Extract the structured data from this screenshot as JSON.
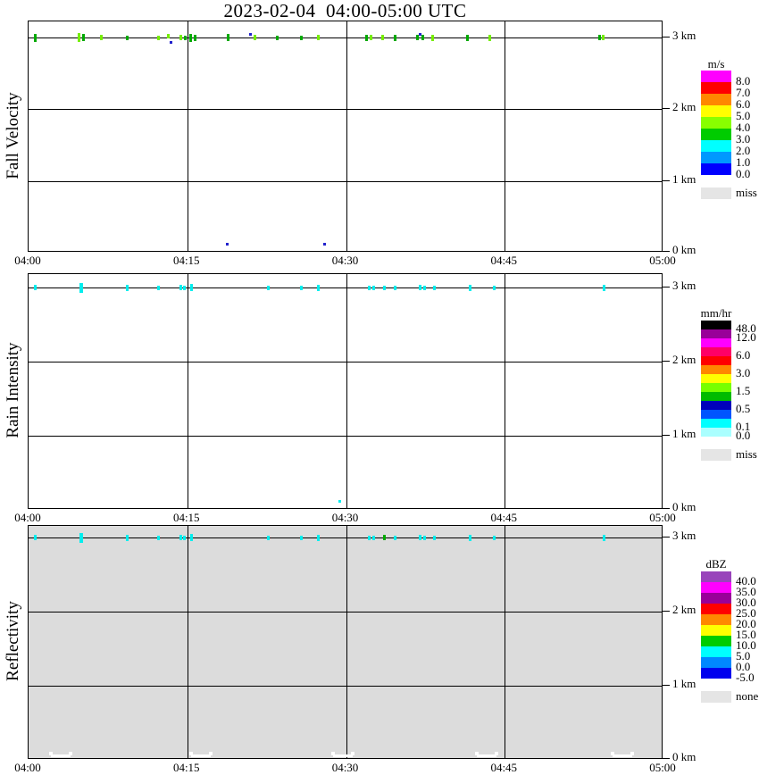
{
  "title": "2023-02-04  04:00-05:00 UTC",
  "x_axis": {
    "labels": [
      "04:00",
      "04:15",
      "04:30",
      "04:45",
      "05:00"
    ]
  },
  "y_axis": {
    "labels": [
      "3 km",
      "2 km",
      "1 km",
      "0 km"
    ]
  },
  "chart_data": [
    {
      "type": "heatmap",
      "title": "Fall Velocity",
      "units": "m/s",
      "x_range": [
        "04:00",
        "05:00"
      ],
      "y_range_km": [
        0,
        3.3
      ],
      "grid": true,
      "background": "#ffffff",
      "point_color": "#00aa00",
      "legend": {
        "title": "m/s",
        "position": "right",
        "cells": [
          {
            "color": "#ff00ff",
            "label": "8.0"
          },
          {
            "color": "#ff0000",
            "label": "7.0"
          },
          {
            "color": "#ff8800",
            "label": "6.0"
          },
          {
            "color": "#ffff00",
            "label": "5.0"
          },
          {
            "color": "#88ff00",
            "label": "4.0"
          },
          {
            "color": "#00cc00",
            "label": "3.0"
          },
          {
            "color": "#00ffff",
            "label": "2.0"
          },
          {
            "color": "#0099ff",
            "label": "1.0"
          },
          {
            "color": "#0000ff",
            "label": "0.0"
          }
        ],
        "extra": {
          "color": "#e5e5e5",
          "label": "miss"
        }
      },
      "points": [
        {
          "t": "04:01",
          "f": 0.011,
          "km": 3.05,
          "c": "#00aa00",
          "h": 9
        },
        {
          "t": "04:05",
          "f": 0.08,
          "km": 3.05,
          "c": "#77ee00",
          "h": 10
        },
        {
          "t": "04:05",
          "f": 0.086,
          "km": 3.05,
          "c": "#00aa00",
          "h": 8
        },
        {
          "t": "04:07",
          "f": 0.115,
          "km": 3.05,
          "c": "#77ee00",
          "h": 6
        },
        {
          "t": "04:09",
          "f": 0.156,
          "km": 3.05,
          "c": "#00aa00",
          "h": 5
        },
        {
          "t": "04:12",
          "f": 0.205,
          "km": 3.05,
          "c": "#77ee00",
          "h": 5
        },
        {
          "t": "04:13",
          "f": 0.22,
          "km": 3.08,
          "c": "#77ee00",
          "h": 5,
          "dy": -2
        },
        {
          "t": "04:13",
          "f": 0.225,
          "km": 2.98,
          "c": "#2222cc",
          "h": 3,
          "dy": 5
        },
        {
          "t": "04:14",
          "f": 0.24,
          "km": 3.05,
          "c": "#77ee00",
          "h": 6
        },
        {
          "t": "04:15",
          "f": 0.247,
          "km": 3.05,
          "c": "#00aa00",
          "h": 5
        },
        {
          "t": "04:15",
          "f": 0.255,
          "km": 3.05,
          "c": "#00aa00",
          "h": 9
        },
        {
          "t": "04:16",
          "f": 0.262,
          "km": 3.05,
          "c": "#00aa00",
          "h": 7
        },
        {
          "t": "04:19",
          "f": 0.315,
          "km": 3.05,
          "c": "#00aa00",
          "h": 8
        },
        {
          "t": "04:21",
          "f": 0.35,
          "km": 3.1,
          "c": "#2222cc",
          "h": 3,
          "dy": -4
        },
        {
          "t": "04:21",
          "f": 0.357,
          "km": 3.05,
          "c": "#77ee00",
          "h": 6
        },
        {
          "t": "04:24",
          "f": 0.392,
          "km": 3.05,
          "c": "#00aa00",
          "h": 5
        },
        {
          "t": "04:26",
          "f": 0.43,
          "km": 3.05,
          "c": "#00aa00",
          "h": 5
        },
        {
          "t": "04:27",
          "f": 0.456,
          "km": 3.05,
          "c": "#77ee00",
          "h": 6
        },
        {
          "t": "04:32",
          "f": 0.533,
          "km": 3.05,
          "c": "#00aa00",
          "h": 7
        },
        {
          "t": "04:32",
          "f": 0.54,
          "km": 3.05,
          "c": "#77ee00",
          "h": 6
        },
        {
          "t": "04:33",
          "f": 0.557,
          "km": 3.05,
          "c": "#77ee00",
          "h": 6
        },
        {
          "t": "04:35",
          "f": 0.578,
          "km": 3.05,
          "c": "#00aa00",
          "h": 7
        },
        {
          "t": "04:37",
          "f": 0.613,
          "km": 3.05,
          "c": "#00aa00",
          "h": 6
        },
        {
          "t": "04:37",
          "f": 0.617,
          "km": 3.1,
          "c": "#2222cc",
          "h": 3,
          "dy": -4
        },
        {
          "t": "04:37",
          "f": 0.621,
          "km": 3.05,
          "c": "#00aa00",
          "h": 6
        },
        {
          "t": "04:38",
          "f": 0.637,
          "km": 3.05,
          "c": "#77ee00",
          "h": 7
        },
        {
          "t": "04:41",
          "f": 0.691,
          "km": 3.05,
          "c": "#00aa00",
          "h": 7
        },
        {
          "t": "04:44",
          "f": 0.727,
          "km": 3.05,
          "c": "#77ee00",
          "h": 7
        },
        {
          "t": "04:54",
          "f": 0.899,
          "km": 3.05,
          "c": "#00aa00",
          "h": 6
        },
        {
          "t": "04:54",
          "f": 0.905,
          "km": 3.05,
          "c": "#77ee00",
          "h": 6
        }
      ],
      "bottom_marks": [
        {
          "t": "04:19",
          "f": 0.312,
          "km": 0.05,
          "c": "#2222cc",
          "shape": "dot"
        },
        {
          "t": "04:28",
          "f": 0.466,
          "km": 0.05,
          "c": "#2222cc",
          "shape": "dot"
        }
      ]
    },
    {
      "type": "heatmap",
      "title": "Rain Intensity",
      "units": "mm/hr",
      "x_range": [
        "04:00",
        "05:00"
      ],
      "y_range_km": [
        0,
        3.3
      ],
      "grid": true,
      "background": "#ffffff",
      "point_color": "#00eeee",
      "legend": {
        "title": "mm/hr",
        "position": "right",
        "cells": [
          {
            "color": "#000000",
            "label": "48.0"
          },
          {
            "color": "#990099",
            "label": "12.0"
          },
          {
            "color": "#ff00ff",
            "label": ""
          },
          {
            "color": "#ff0066",
            "label": "6.0"
          },
          {
            "color": "#ff0000",
            "label": ""
          },
          {
            "color": "#ff8800",
            "label": "3.0"
          },
          {
            "color": "#ffff00",
            "label": ""
          },
          {
            "color": "#77ff00",
            "label": "1.5"
          },
          {
            "color": "#00bb00",
            "label": ""
          },
          {
            "color": "#0000bb",
            "label": "0.5"
          },
          {
            "color": "#0055ff",
            "label": ""
          },
          {
            "color": "#00ffff",
            "label": "0.1"
          },
          {
            "color": "#aaffff",
            "label": "0.0"
          }
        ],
        "extra": {
          "color": "#e5e5e5",
          "label": "miss"
        }
      },
      "points": [
        {
          "t": "04:01",
          "f": 0.011,
          "km": 3.05,
          "h": 6
        },
        {
          "t": "04:05",
          "f": 0.083,
          "km": 3.05,
          "h": 11,
          "w": 4
        },
        {
          "t": "04:09",
          "f": 0.156,
          "km": 3.05,
          "h": 7
        },
        {
          "t": "04:12",
          "f": 0.205,
          "km": 3.05,
          "h": 5
        },
        {
          "t": "04:14",
          "f": 0.24,
          "km": 3.05,
          "h": 6
        },
        {
          "t": "04:15",
          "f": 0.246,
          "km": 3.05,
          "h": 5
        },
        {
          "t": "04:15",
          "f": 0.257,
          "km": 3.05,
          "h": 8
        },
        {
          "t": "04:23",
          "f": 0.378,
          "km": 3.05,
          "h": 5
        },
        {
          "t": "04:26",
          "f": 0.43,
          "km": 3.05,
          "h": 5
        },
        {
          "t": "04:27",
          "f": 0.456,
          "km": 3.05,
          "h": 7
        },
        {
          "t": "04:32",
          "f": 0.536,
          "km": 3.05,
          "h": 5
        },
        {
          "t": "04:33",
          "f": 0.543,
          "km": 3.05,
          "h": 5
        },
        {
          "t": "04:34",
          "f": 0.56,
          "km": 3.05,
          "h": 5
        },
        {
          "t": "04:35",
          "f": 0.578,
          "km": 3.05,
          "h": 5
        },
        {
          "t": "04:37",
          "f": 0.617,
          "km": 3.05,
          "h": 6
        },
        {
          "t": "04:37",
          "f": 0.624,
          "km": 3.05,
          "h": 5
        },
        {
          "t": "04:38",
          "f": 0.639,
          "km": 3.05,
          "h": 5
        },
        {
          "t": "04:42",
          "f": 0.695,
          "km": 3.05,
          "h": 7
        },
        {
          "t": "04:44",
          "f": 0.733,
          "km": 3.05,
          "h": 5
        },
        {
          "t": "04:54",
          "f": 0.906,
          "km": 3.05,
          "h": 7
        }
      ],
      "bottom_marks": [
        {
          "t": "04:29",
          "f": 0.49,
          "km": 0.15,
          "c": "#00eeee",
          "shape": "dot"
        }
      ]
    },
    {
      "type": "heatmap",
      "title": "Reflectivity",
      "units": "dBZ",
      "x_range": [
        "04:00",
        "05:00"
      ],
      "y_range_km": [
        0,
        3.3
      ],
      "grid": true,
      "background": "#dcdcdc",
      "point_color": "#00eeee",
      "legend": {
        "title": "dBZ",
        "position": "right",
        "cells": [
          {
            "color": "#9944bb",
            "label": "40.0"
          },
          {
            "color": "#ff00ff",
            "label": "35.0"
          },
          {
            "color": "#990099",
            "label": "30.0"
          },
          {
            "color": "#ff0000",
            "label": "25.0"
          },
          {
            "color": "#ff8800",
            "label": "20.0"
          },
          {
            "color": "#ffff00",
            "label": "15.0"
          },
          {
            "color": "#00cc00",
            "label": "10.0"
          },
          {
            "color": "#00ffff",
            "label": "5.0"
          },
          {
            "color": "#0088ff",
            "label": "0.0"
          },
          {
            "color": "#0000ee",
            "label": "-5.0"
          }
        ],
        "extra": {
          "color": "#e5e5e5",
          "label": "none"
        }
      },
      "points": [
        {
          "t": "04:01",
          "f": 0.011,
          "km": 3.05,
          "h": 6
        },
        {
          "t": "04:05",
          "f": 0.083,
          "km": 3.05,
          "h": 11,
          "w": 4
        },
        {
          "t": "04:09",
          "f": 0.156,
          "km": 3.05,
          "h": 7
        },
        {
          "t": "04:12",
          "f": 0.205,
          "km": 3.05,
          "h": 5
        },
        {
          "t": "04:14",
          "f": 0.24,
          "km": 3.05,
          "h": 6
        },
        {
          "t": "04:15",
          "f": 0.246,
          "km": 3.05,
          "h": 5
        },
        {
          "t": "04:15",
          "f": 0.257,
          "km": 3.05,
          "h": 8
        },
        {
          "t": "04:23",
          "f": 0.378,
          "km": 3.05,
          "h": 5
        },
        {
          "t": "04:26",
          "f": 0.43,
          "km": 3.05,
          "h": 5
        },
        {
          "t": "04:27",
          "f": 0.456,
          "km": 3.05,
          "h": 7
        },
        {
          "t": "04:32",
          "f": 0.536,
          "km": 3.05,
          "h": 5
        },
        {
          "t": "04:33",
          "f": 0.543,
          "km": 3.05,
          "h": 5
        },
        {
          "t": "04:34",
          "f": 0.56,
          "km": 3.05,
          "c": "#00aa00",
          "h": 6
        },
        {
          "t": "04:35",
          "f": 0.578,
          "km": 3.05,
          "h": 5
        },
        {
          "t": "04:37",
          "f": 0.617,
          "km": 3.05,
          "h": 6
        },
        {
          "t": "04:37",
          "f": 0.624,
          "km": 3.05,
          "h": 5
        },
        {
          "t": "04:38",
          "f": 0.639,
          "km": 3.05,
          "h": 5
        },
        {
          "t": "04:42",
          "f": 0.695,
          "km": 3.05,
          "h": 7
        },
        {
          "t": "04:44",
          "f": 0.733,
          "km": 3.05,
          "h": 5
        },
        {
          "t": "04:54",
          "f": 0.906,
          "km": 3.05,
          "h": 7
        }
      ],
      "bottom_marks": [
        {
          "f": 0.05,
          "km": 0.02,
          "c": "#ffffff",
          "shape": "notch"
        },
        {
          "f": 0.272,
          "km": 0.02,
          "c": "#ffffff",
          "shape": "notch"
        },
        {
          "f": 0.495,
          "km": 0.02,
          "c": "#ffffff",
          "shape": "notch"
        },
        {
          "f": 0.722,
          "km": 0.02,
          "c": "#ffffff",
          "shape": "notch"
        },
        {
          "f": 0.936,
          "km": 0.02,
          "c": "#ffffff",
          "shape": "notch"
        }
      ]
    }
  ]
}
